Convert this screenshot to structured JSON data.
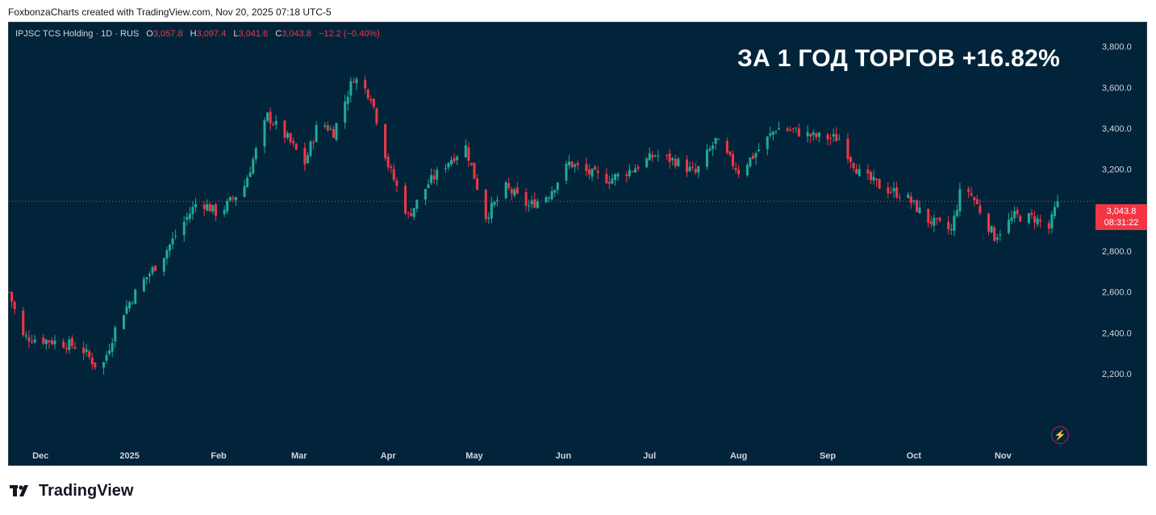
{
  "attribution": "FoxbonzaCharts created with TradingView.com, Nov 20, 2025 07:18 UTC-5",
  "legend": {
    "symbol": "IPJSC TCS Holding · 1D · RUS",
    "o_label": "O",
    "o_value": "3,057.8",
    "h_label": "H",
    "h_value": "3,097.4",
    "l_label": "L",
    "l_value": "3,041.6",
    "c_label": "C",
    "c_value": "3,043.8",
    "change": "−12.2 (−0.40%)"
  },
  "headline": "ЗА 1 ГОД ТОРГОВ +16.82%",
  "price_tag": {
    "price": "3,043.8",
    "countdown": "08:31:22"
  },
  "footer": {
    "brand": "TradingView",
    "logo_icon": "tradingview-logo-icon"
  },
  "toolbar": {
    "bolt_icon": "lightning-icon"
  },
  "colors": {
    "up": "#22ab94",
    "down": "#f23645",
    "background": "#02243a",
    "grid_text": "#d1d4dc"
  },
  "chart_data": {
    "type": "candlestick",
    "title": "",
    "xlabel": "",
    "ylabel": "",
    "ylim": [
      2050,
      3850
    ],
    "y_ticks": [
      "3,800.0",
      "3,600.0",
      "3,400.0",
      "3,200.0",
      "3,000.0",
      "2,800.0",
      "2,600.0",
      "2,400.0",
      "2,200.0"
    ],
    "y_tick_values": [
      3800,
      3600,
      3400,
      3200,
      3000,
      2800,
      2600,
      2400,
      2200
    ],
    "x_ticks": [
      "Dec",
      "2025",
      "Feb",
      "Mar",
      "Apr",
      "May",
      "Jun",
      "Jul",
      "Aug",
      "Sep",
      "Oct",
      "Nov"
    ],
    "x_tick_dates": [
      "2024-12-01",
      "2025-01-01",
      "2025-02-01",
      "2025-03-01",
      "2025-04-01",
      "2025-05-01",
      "2025-06-01",
      "2025-07-01",
      "2025-08-01",
      "2025-09-01",
      "2025-10-01",
      "2025-11-01"
    ],
    "date_range": [
      "2024-11-20",
      "2025-11-20"
    ],
    "last_price": 3043.8,
    "anchors": [
      [
        "2024-11-20",
        2600
      ],
      [
        "2024-11-25",
        2380
      ],
      [
        "2024-12-05",
        2360
      ],
      [
        "2024-12-15",
        2330
      ],
      [
        "2024-12-22",
        2210
      ],
      [
        "2024-12-28",
        2460
      ],
      [
        "2025-01-05",
        2640
      ],
      [
        "2025-01-12",
        2760
      ],
      [
        "2025-01-18",
        2900
      ],
      [
        "2025-01-25",
        3050
      ],
      [
        "2025-02-01",
        2980
      ],
      [
        "2025-02-10",
        3120
      ],
      [
        "2025-02-18",
        3460
      ],
      [
        "2025-02-25",
        3350
      ],
      [
        "2025-03-03",
        3230
      ],
      [
        "2025-03-08",
        3440
      ],
      [
        "2025-03-13",
        3380
      ],
      [
        "2025-03-20",
        3650
      ],
      [
        "2025-03-26",
        3560
      ],
      [
        "2025-04-01",
        3220
      ],
      [
        "2025-04-08",
        2970
      ],
      [
        "2025-04-15",
        3130
      ],
      [
        "2025-04-22",
        3240
      ],
      [
        "2025-04-28",
        3310
      ],
      [
        "2025-05-05",
        2970
      ],
      [
        "2025-05-12",
        3110
      ],
      [
        "2025-05-20",
        3020
      ],
      [
        "2025-05-27",
        3080
      ],
      [
        "2025-06-03",
        3230
      ],
      [
        "2025-06-10",
        3180
      ],
      [
        "2025-06-17",
        3150
      ],
      [
        "2025-06-25",
        3200
      ],
      [
        "2025-07-03",
        3270
      ],
      [
        "2025-07-10",
        3240
      ],
      [
        "2025-07-17",
        3180
      ],
      [
        "2025-07-24",
        3340
      ],
      [
        "2025-08-01",
        3190
      ],
      [
        "2025-08-07",
        3280
      ],
      [
        "2025-08-14",
        3400
      ],
      [
        "2025-08-20",
        3390
      ],
      [
        "2025-08-27",
        3360
      ],
      [
        "2025-09-05",
        3350
      ],
      [
        "2025-09-12",
        3180
      ],
      [
        "2025-09-20",
        3110
      ],
      [
        "2025-09-28",
        3070
      ],
      [
        "2025-10-06",
        2950
      ],
      [
        "2025-10-14",
        2900
      ],
      [
        "2025-10-18",
        3140
      ],
      [
        "2025-10-22",
        3050
      ],
      [
        "2025-10-29",
        2870
      ],
      [
        "2025-11-05",
        2970
      ],
      [
        "2025-11-12",
        2960
      ],
      [
        "2025-11-17",
        2910
      ],
      [
        "2025-11-20",
        3043.8
      ]
    ]
  }
}
